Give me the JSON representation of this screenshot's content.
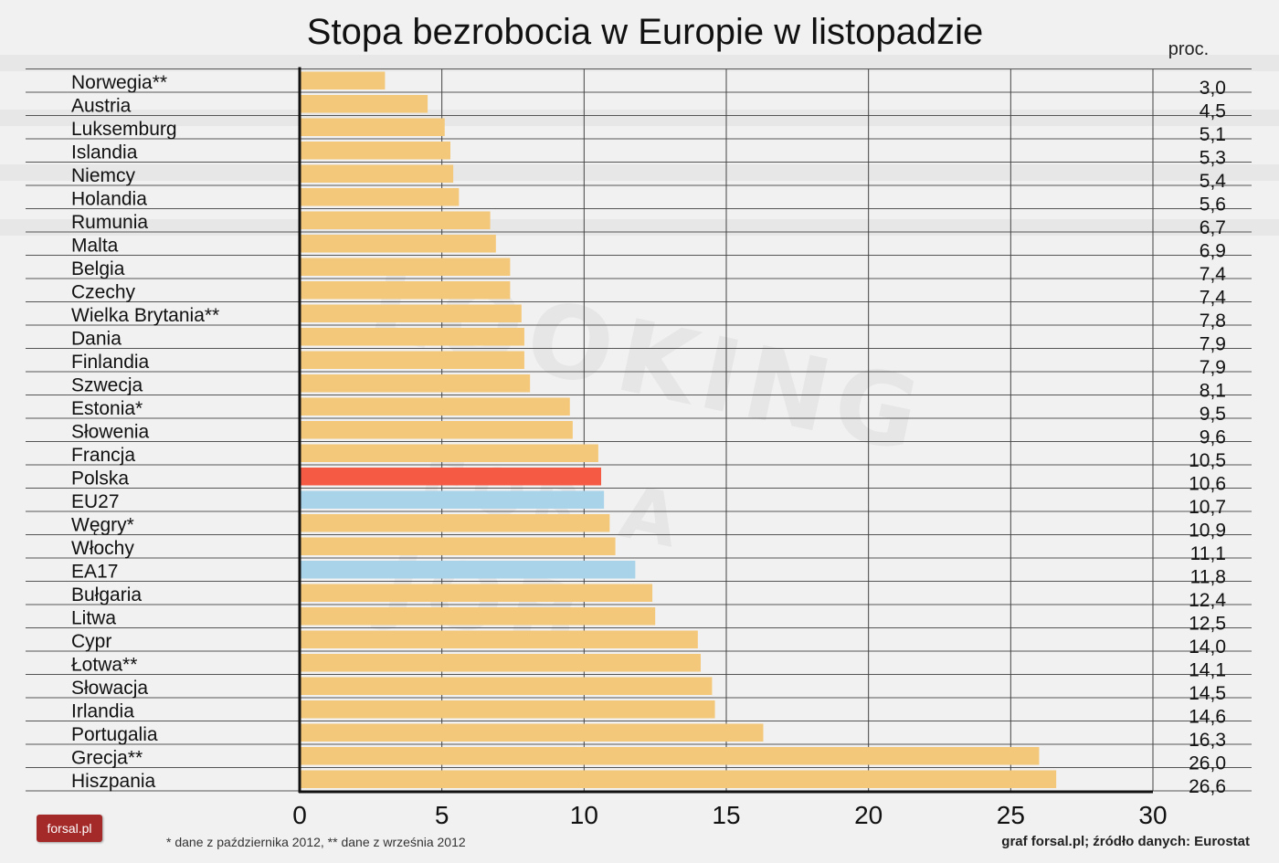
{
  "chart_data": {
    "type": "bar",
    "title": "Stopa bezrobocia w Europie w listopadzie",
    "unit_label": "proc.",
    "xlim": [
      0,
      30
    ],
    "x_ticks": [
      0,
      5,
      10,
      15,
      20,
      25,
      30
    ],
    "orientation": "horizontal",
    "grid": true,
    "categories": [
      "Norwegia**",
      "Austria",
      "Luksemburg",
      "Islandia",
      "Niemcy",
      "Holandia",
      "Rumunia",
      "Malta",
      "Belgia",
      "Czechy",
      "Wielka Brytania**",
      "Dania",
      "Finlandia",
      "Szwecja",
      "Estonia*",
      "Słowenia",
      "Francja",
      "Polska",
      "EU27",
      "Węgry*",
      "Włochy",
      "EA17",
      "Bułgaria",
      "Litwa",
      "Cypr",
      "Łotwa**",
      "Słowacja",
      "Irlandia",
      "Portugalia",
      "Grecja**",
      "Hiszpania"
    ],
    "values": [
      3.0,
      4.5,
      5.1,
      5.3,
      5.4,
      5.6,
      6.7,
      6.9,
      7.4,
      7.4,
      7.8,
      7.9,
      7.9,
      8.1,
      9.5,
      9.6,
      10.5,
      10.6,
      10.7,
      10.9,
      11.1,
      11.8,
      12.4,
      12.5,
      14.0,
      14.1,
      14.5,
      14.6,
      16.3,
      26.0,
      26.6
    ],
    "value_labels": [
      "3,0",
      "4,5",
      "5,1",
      "5,3",
      "5,4",
      "5,6",
      "6,7",
      "6,9",
      "7,4",
      "7,4",
      "7,8",
      "7,9",
      "7,9",
      "8,1",
      "9,5",
      "9,6",
      "10,5",
      "10,6",
      "10,7",
      "10,9",
      "11,1",
      "11,8",
      "12,4",
      "12,5",
      "14,0",
      "14,1",
      "14,5",
      "14,6",
      "16,3",
      "26,0",
      "26,6"
    ],
    "highlight_colors": {
      "Polska": "#f55a45",
      "EU27": "#a8d3e8",
      "EA17": "#a8d3e8"
    },
    "default_bar_color": "#f4c87a"
  },
  "footnote": "* dane z października 2012, ** dane z września 2012",
  "source": "graf forsal.pl; źródło danych: Eurostat",
  "logo_text": "forsal.pl",
  "watermark": [
    "LOOKING",
    "FOR",
    "A",
    "JOB"
  ]
}
